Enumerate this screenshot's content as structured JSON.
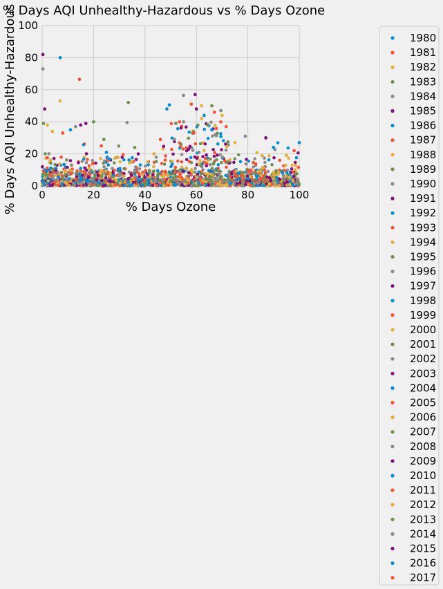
{
  "chart_data": {
    "type": "scatter",
    "title": "% Days AQI Unhealthy-Hazardous vs % Days Ozone",
    "xlabel": "% Days Ozone",
    "ylabel": "% Days AQI Unhealthy-Hazardous",
    "xlim": [
      0,
      100
    ],
    "ylim": [
      0,
      100
    ],
    "xticks": [
      "0",
      "20",
      "40",
      "60",
      "80",
      "100"
    ],
    "yticks": [
      "0",
      "20",
      "40",
      "60",
      "80",
      "100"
    ],
    "grid": true,
    "legend_placement": "right-outside",
    "colors": [
      "#008fd5",
      "#fc4f30",
      "#e5ae38",
      "#6d904f",
      "#8b8b8b",
      "#810f7c"
    ],
    "series_names": [
      "1980",
      "1981",
      "1982",
      "1983",
      "1984",
      "1985",
      "1986",
      "1987",
      "1988",
      "1989",
      "1990",
      "1991",
      "1992",
      "1993",
      "1994",
      "1995",
      "1996",
      "1997",
      "1998",
      "1999",
      "2000",
      "2001",
      "2002",
      "2003",
      "2004",
      "2005",
      "2006",
      "2007",
      "2008",
      "2009",
      "2010",
      "2011",
      "2012",
      "2013",
      "2014",
      "2015",
      "2016",
      "2017"
    ],
    "highlight_points": [
      [
        7,
        80
      ],
      [
        14.5,
        66.5
      ],
      [
        7,
        53
      ],
      [
        33.5,
        52
      ],
      [
        55,
        56.5
      ],
      [
        59.5,
        57
      ],
      [
        49.5,
        50.5
      ],
      [
        58,
        51
      ],
      [
        62,
        50
      ],
      [
        66,
        50
      ],
      [
        69.5,
        47
      ],
      [
        1,
        48
      ],
      [
        48.5,
        48
      ],
      [
        67,
        46
      ],
      [
        70,
        44
      ],
      [
        20,
        40
      ],
      [
        33,
        39.5
      ],
      [
        15,
        38
      ],
      [
        11,
        35
      ],
      [
        8,
        33
      ],
      [
        4,
        34
      ],
      [
        24,
        29
      ],
      [
        79,
        31
      ],
      [
        87,
        30
      ],
      [
        90,
        24
      ],
      [
        46,
        29
      ],
      [
        75,
        27
      ],
      [
        54,
        26
      ],
      [
        61,
        21
      ],
      [
        57,
        23
      ],
      [
        66,
        35
      ],
      [
        59,
        33
      ],
      [
        62,
        42
      ],
      [
        52,
        39
      ],
      [
        55,
        40
      ],
      [
        60,
        48
      ],
      [
        63,
        44
      ],
      [
        31.5,
        19.5
      ],
      [
        43.5,
        20
      ],
      [
        36,
        24
      ],
      [
        13,
        37
      ],
      [
        17,
        39
      ],
      [
        25,
        21
      ],
      [
        23,
        25
      ],
      [
        2,
        38
      ],
      [
        0.5,
        39
      ],
      [
        0.3,
        73
      ],
      [
        0.3,
        82
      ],
      [
        100,
        27
      ],
      [
        98,
        22
      ],
      [
        95,
        19
      ]
    ]
  }
}
